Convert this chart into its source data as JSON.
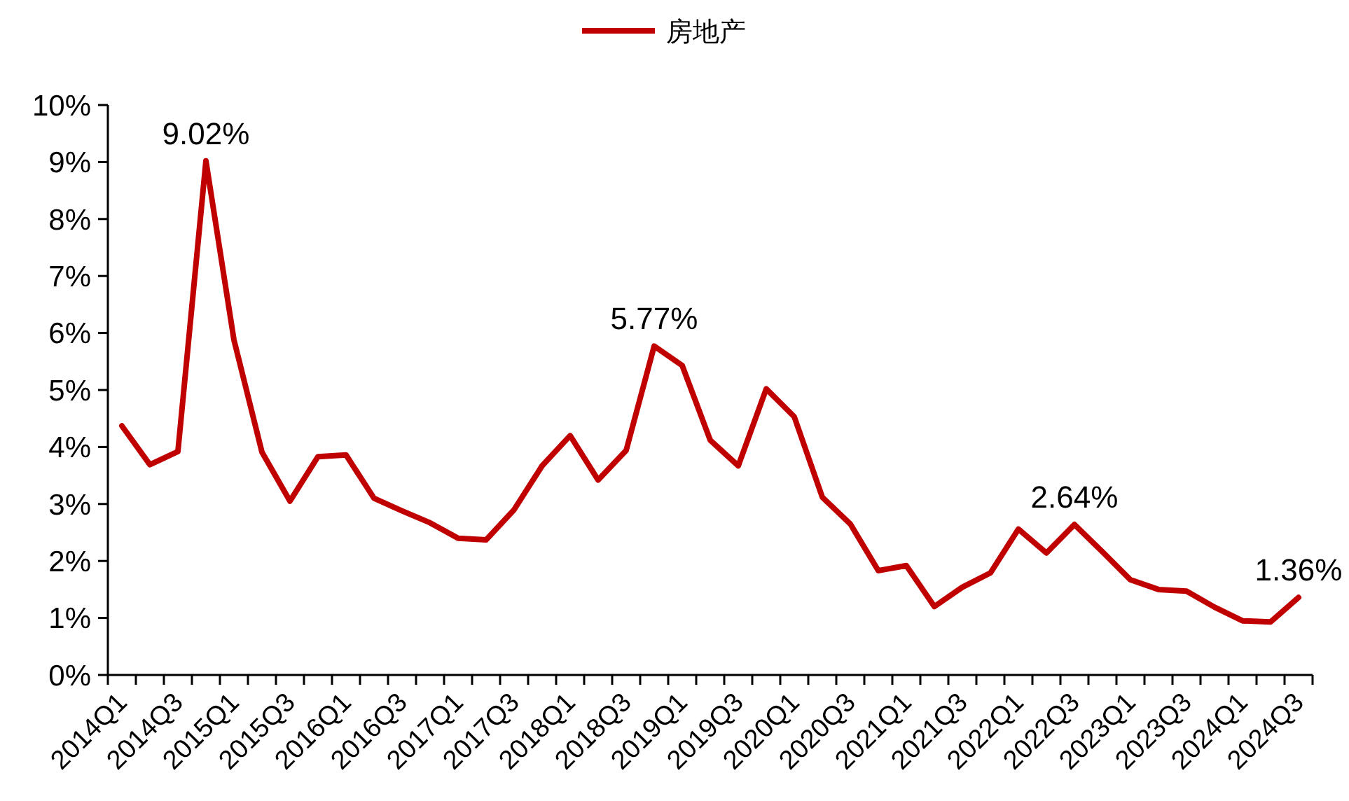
{
  "chart_data": {
    "type": "line",
    "categories": [
      "2014Q1",
      null,
      "2014Q3",
      null,
      "2015Q1",
      null,
      "2015Q3",
      null,
      "2016Q1",
      null,
      "2016Q3",
      null,
      "2017Q1",
      null,
      "2017Q3",
      null,
      "2018Q1",
      null,
      "2018Q3",
      null,
      "2019Q1",
      null,
      "2019Q3",
      null,
      "2020Q1",
      null,
      "2020Q3",
      null,
      "2021Q1",
      null,
      "2021Q3",
      null,
      "2022Q1",
      null,
      "2022Q3",
      null,
      "2023Q1",
      null,
      "2023Q3",
      null,
      "2024Q1",
      null,
      "2024Q3"
    ],
    "series": [
      {
        "name": "房地产",
        "color": "#c00000",
        "values": [
          4.37,
          3.69,
          3.92,
          9.02,
          5.88,
          3.91,
          3.05,
          3.83,
          3.86,
          3.1,
          2.88,
          2.67,
          2.4,
          2.37,
          2.9,
          3.67,
          4.2,
          3.42,
          3.94,
          5.77,
          5.43,
          4.12,
          3.67,
          5.02,
          4.53,
          3.12,
          2.65,
          1.83,
          1.92,
          1.2,
          1.54,
          1.79,
          2.56,
          2.14,
          2.64,
          2.16,
          1.67,
          1.5,
          1.47,
          1.19,
          0.95,
          0.93,
          1.36
        ],
        "value_labels": [
          null,
          null,
          null,
          "9.02%",
          null,
          null,
          null,
          null,
          null,
          null,
          null,
          null,
          null,
          null,
          null,
          null,
          null,
          null,
          null,
          "5.77%",
          null,
          null,
          null,
          null,
          null,
          null,
          null,
          null,
          null,
          null,
          null,
          null,
          null,
          null,
          "2.64%",
          null,
          null,
          null,
          null,
          null,
          null,
          null,
          "1.36%"
        ]
      }
    ],
    "ylim": [
      0,
      10
    ],
    "yticks": [
      {
        "value": 0,
        "label": "0%"
      },
      {
        "value": 1,
        "label": "1%"
      },
      {
        "value": 2,
        "label": "2%"
      },
      {
        "value": 3,
        "label": "3%"
      },
      {
        "value": 4,
        "label": "4%"
      },
      {
        "value": 5,
        "label": "5%"
      },
      {
        "value": 6,
        "label": "6%"
      },
      {
        "value": 7,
        "label": "7%"
      },
      {
        "value": 8,
        "label": "8%"
      },
      {
        "value": 9,
        "label": "9%"
      },
      {
        "value": 10,
        "label": "10%"
      }
    ],
    "grid": false,
    "legend": "top",
    "marker": "none",
    "line_style": "solid"
  }
}
